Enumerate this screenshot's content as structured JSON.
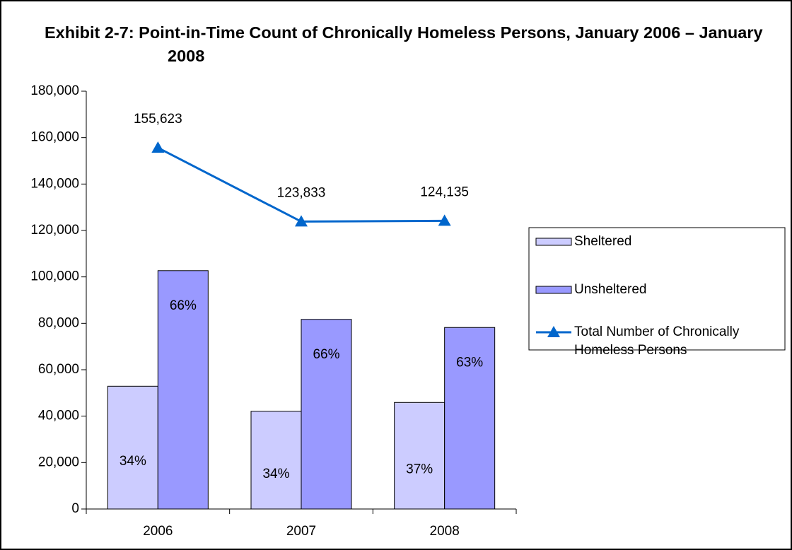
{
  "chart_data": {
    "type": "bar_line",
    "title": "Exhibit 2-7: Point-in-Time Count of Chronically Homeless Persons, January 2006 – January 2008",
    "categories": [
      "2006",
      "2007",
      "2008"
    ],
    "series": [
      {
        "name": "Sheltered",
        "type": "bar",
        "color": "#ccccff",
        "values": [
          52900,
          42100,
          45900
        ],
        "share_labels": [
          "34%",
          "34%",
          "37%"
        ]
      },
      {
        "name": "Unsheltered",
        "type": "bar",
        "color": "#9999ff",
        "values": [
          102700,
          81700,
          78200
        ],
        "share_labels": [
          "66%",
          "66%",
          "63%"
        ]
      },
      {
        "name": "Total Number of Chronically Homeless Persons",
        "type": "line",
        "color": "#0066cc",
        "values": [
          155623,
          123833,
          124135
        ],
        "value_labels": [
          "155,623",
          "123,833",
          "124,135"
        ]
      }
    ],
    "ylim": [
      0,
      180000
    ],
    "yticks": [
      0,
      {
        "value": 20000,
        "label": "20,000"
      },
      {
        "value": 40000,
        "label": "40,000"
      },
      {
        "value": 60000,
        "label": "60,000"
      },
      {
        "value": 80000,
        "label": "80,000"
      },
      {
        "value": 100000,
        "label": "100,000"
      },
      {
        "value": 120000,
        "label": "120,000"
      },
      {
        "value": 140000,
        "label": "140,000"
      },
      {
        "value": 160000,
        "label": "160,000"
      },
      {
        "value": 180000,
        "label": "180,000"
      }
    ],
    "legend": "right"
  }
}
